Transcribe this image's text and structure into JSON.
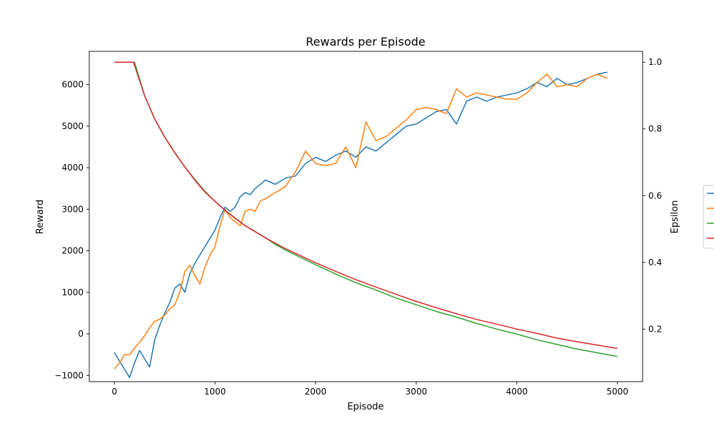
{
  "chart_data": {
    "type": "line",
    "title": "Rewards per Episode",
    "xlabel": "Episode",
    "ylabel": "Reward",
    "y2label": "Epsilon",
    "xlim": [
      -250,
      5250
    ],
    "ylim": [
      -1150,
      6800
    ],
    "y2lim": [
      0.0425,
      1.0325
    ],
    "xticks": [
      0,
      1000,
      2000,
      3000,
      4000,
      5000
    ],
    "yticks": [
      -1000,
      0,
      1000,
      2000,
      3000,
      4000,
      5000,
      6000
    ],
    "y2ticks": [
      0.2,
      0.4,
      0.6,
      0.8,
      1.0
    ],
    "y2ticklabels": [
      "0.2",
      "0.4",
      "0.6",
      "0.8",
      "1.0"
    ],
    "grid": false,
    "legend": "right, cut off",
    "series": [
      {
        "axis": "left",
        "color": "#1f77b4",
        "x": [
          0,
          50,
          100,
          150,
          200,
          250,
          300,
          350,
          400,
          450,
          500,
          550,
          600,
          650,
          700,
          750,
          800,
          850,
          900,
          950,
          1000,
          1050,
          1100,
          1150,
          1200,
          1250,
          1300,
          1350,
          1400,
          1450,
          1500,
          1600,
          1700,
          1800,
          1900,
          2000,
          2100,
          2200,
          2300,
          2400,
          2500,
          2600,
          2700,
          2800,
          2900,
          3000,
          3100,
          3200,
          3300,
          3400,
          3500,
          3600,
          3700,
          3800,
          3900,
          4000,
          4100,
          4200,
          4300,
          4400,
          4500,
          4600,
          4700,
          4800,
          4900
        ],
        "y": [
          -450,
          -650,
          -850,
          -1050,
          -700,
          -400,
          -600,
          -800,
          -150,
          200,
          500,
          750,
          1100,
          1200,
          1000,
          1450,
          1700,
          1900,
          2100,
          2300,
          2500,
          2800,
          3050,
          2950,
          3050,
          3300,
          3400,
          3350,
          3500,
          3600,
          3700,
          3600,
          3750,
          3800,
          4100,
          4250,
          4150,
          4300,
          4400,
          4250,
          4500,
          4400,
          4600,
          4800,
          5000,
          5050,
          5200,
          5350,
          5400,
          5050,
          5600,
          5700,
          5600,
          5700,
          5750,
          5800,
          5900,
          6050,
          5950,
          6150,
          6000,
          6050,
          6150,
          6250,
          6300
        ]
      },
      {
        "axis": "left",
        "color": "#ff7f0e",
        "x": [
          0,
          50,
          100,
          150,
          200,
          250,
          300,
          350,
          400,
          450,
          500,
          550,
          600,
          650,
          700,
          750,
          800,
          850,
          900,
          950,
          1000,
          1050,
          1100,
          1150,
          1200,
          1250,
          1300,
          1350,
          1400,
          1450,
          1500,
          1600,
          1700,
          1800,
          1900,
          2000,
          2100,
          2200,
          2300,
          2400,
          2500,
          2600,
          2700,
          2800,
          2900,
          3000,
          3100,
          3200,
          3300,
          3400,
          3500,
          3600,
          3700,
          3800,
          3900,
          4000,
          4100,
          4200,
          4300,
          4400,
          4500,
          4600,
          4700,
          4800,
          4900
        ],
        "y": [
          -850,
          -700,
          -500,
          -500,
          -350,
          -200,
          -50,
          150,
          300,
          350,
          450,
          600,
          700,
          1000,
          1500,
          1650,
          1400,
          1200,
          1600,
          1900,
          2100,
          2600,
          3000,
          2800,
          2700,
          2600,
          2950,
          3000,
          2950,
          3200,
          3250,
          3400,
          3550,
          3900,
          4400,
          4100,
          4050,
          4100,
          4500,
          4000,
          5100,
          4650,
          4750,
          4950,
          5150,
          5400,
          5450,
          5400,
          5300,
          5900,
          5700,
          5800,
          5750,
          5700,
          5650,
          5650,
          5800,
          6050,
          6250,
          5950,
          6000,
          5950,
          6150,
          6250,
          6150
        ]
      },
      {
        "axis": "right",
        "color": "#2ca02c",
        "x": [
          0,
          200,
          300,
          400,
          500,
          600,
          700,
          800,
          900,
          1000,
          1100,
          1200,
          1300,
          1400,
          1500,
          1600,
          1700,
          1800,
          2000,
          2200,
          2400,
          2600,
          2800,
          3000,
          3200,
          3400,
          3600,
          3800,
          4000,
          4200,
          4400,
          4600,
          4800,
          5000
        ],
        "y": [
          1.0,
          1.0,
          0.9,
          0.83,
          0.775,
          0.728,
          0.686,
          0.648,
          0.613,
          0.583,
          0.557,
          0.533,
          0.51,
          0.492,
          0.474,
          0.454,
          0.437,
          0.422,
          0.393,
          0.365,
          0.339,
          0.317,
          0.293,
          0.273,
          0.253,
          0.236,
          0.217,
          0.2,
          0.185,
          0.168,
          0.154,
          0.14,
          0.129,
          0.118
        ]
      },
      {
        "axis": "right",
        "color": "#d62728",
        "x": [
          0,
          190,
          300,
          400,
          500,
          600,
          700,
          800,
          900,
          1000,
          1100,
          1200,
          1300,
          1400,
          1500,
          1600,
          1700,
          1800,
          2000,
          2200,
          2400,
          2600,
          2800,
          3000,
          3200,
          3400,
          3600,
          3800,
          4000,
          4200,
          4400,
          4600,
          4800,
          5000
        ],
        "y": [
          1.0,
          1.0,
          0.9,
          0.83,
          0.776,
          0.729,
          0.686,
          0.646,
          0.611,
          0.583,
          0.556,
          0.532,
          0.51,
          0.492,
          0.474,
          0.457,
          0.441,
          0.427,
          0.399,
          0.373,
          0.348,
          0.326,
          0.304,
          0.283,
          0.264,
          0.246,
          0.229,
          0.215,
          0.2,
          0.187,
          0.173,
          0.162,
          0.152,
          0.142
        ]
      }
    ]
  }
}
